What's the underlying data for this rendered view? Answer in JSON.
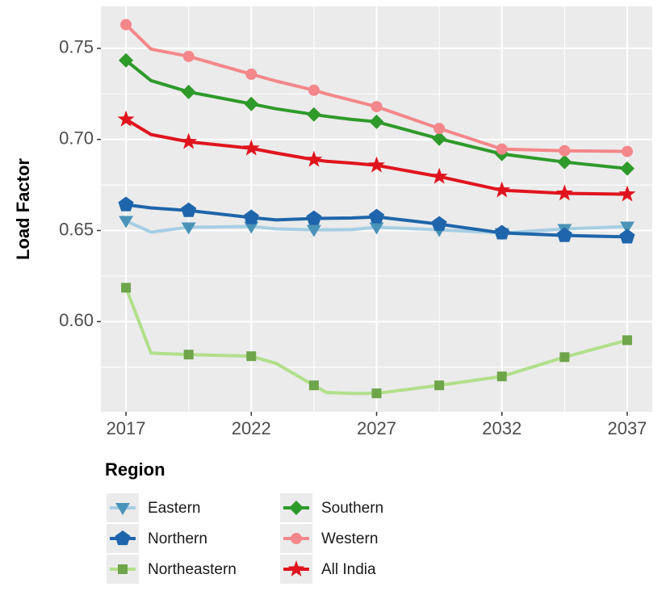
{
  "chart_data": {
    "type": "line",
    "y_label": "Load Factor",
    "legend_title": "Region",
    "x": [
      2017,
      2018,
      2019.5,
      2022,
      2023,
      2024.5,
      2025,
      2026,
      2027,
      2029.5,
      2032,
      2034.5,
      2037
    ],
    "marker_x": [
      2017,
      2019.5,
      2022,
      2024.5,
      2027,
      2029.5,
      2032,
      2034.5,
      2037
    ],
    "series": [
      {
        "name": "Eastern",
        "color": "#a6cee3",
        "marker_color": "#4a93b8",
        "shape": "triangle-down",
        "values": [
          0.6553,
          0.6491,
          0.6518,
          0.6522,
          0.6509,
          0.6504,
          0.6504,
          0.6505,
          0.6518,
          0.6504,
          0.6487,
          0.6509,
          0.6522
        ]
      },
      {
        "name": "Northern",
        "color": "#1f65ab",
        "marker_color": "#1f65ab",
        "shape": "pentagon",
        "values": [
          0.6642,
          0.6624,
          0.661,
          0.6571,
          0.6558,
          0.6566,
          0.6567,
          0.6569,
          0.6575,
          0.6535,
          0.6487,
          0.6473,
          0.6465
        ]
      },
      {
        "name": "Northeastern",
        "color": "#b2df8a",
        "marker_color": "#6ea44a",
        "shape": "square",
        "values": [
          0.6186,
          0.5827,
          0.5819,
          0.581,
          0.577,
          0.565,
          0.5611,
          0.5606,
          0.5606,
          0.565,
          0.5699,
          0.5805,
          0.5898
        ]
      },
      {
        "name": "Southern",
        "color": "#2e9a2a",
        "marker_color": "#2e9a2a",
        "shape": "diamond",
        "values": [
          0.7434,
          0.7323,
          0.7261,
          0.7195,
          0.7168,
          0.7137,
          0.7127,
          0.711,
          0.7097,
          0.7004,
          0.692,
          0.6876,
          0.684
        ]
      },
      {
        "name": "Western",
        "color": "#f4878b",
        "marker_color": "#f4878b",
        "shape": "circle",
        "values": [
          0.763,
          0.7496,
          0.7456,
          0.7358,
          0.732,
          0.727,
          0.725,
          0.7215,
          0.718,
          0.706,
          0.6947,
          0.6938,
          0.6934
        ]
      },
      {
        "name": "All India",
        "color": "#e0141e",
        "marker_color": "#e0141e",
        "shape": "star",
        "values": [
          0.711,
          0.7027,
          0.6987,
          0.6951,
          0.6925,
          0.6889,
          0.688,
          0.687,
          0.6858,
          0.6796,
          0.6721,
          0.6704,
          0.6699
        ]
      }
    ],
    "xlim": [
      2016,
      2038
    ],
    "xticks": [
      2017,
      2022,
      2027,
      2032,
      2037
    ],
    "x_minor_grid": [
      2019.5,
      2024.5,
      2029.5,
      2034.5
    ],
    "ylim": [
      0.5505,
      0.773
    ],
    "yticks": [
      {
        "value": 0.6,
        "label": "0.60"
      },
      {
        "value": 0.65,
        "label": "0.65"
      },
      {
        "value": 0.7,
        "label": "0.70"
      },
      {
        "value": 0.75,
        "label": "0.75"
      }
    ],
    "y_minor_grid": [
      0.575,
      0.625,
      0.675,
      0.725
    ],
    "grid": true
  }
}
